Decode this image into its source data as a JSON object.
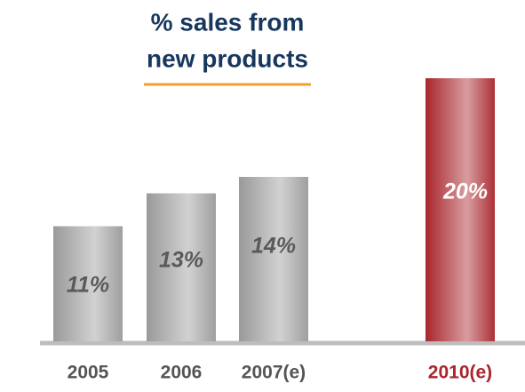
{
  "chart_data": {
    "type": "bar",
    "title": [
      "% sales from",
      "new products"
    ],
    "categories": [
      "2005",
      "2006",
      "2007(e)",
      "2010(e)"
    ],
    "values": [
      11,
      13,
      14,
      20
    ],
    "value_labels": [
      "11%",
      "13%",
      "14%",
      "20%"
    ],
    "colors": [
      "#9a9a9a",
      "#9a9a9a",
      "#9a9a9a",
      "#a8262c"
    ],
    "ylim": [
      4,
      20
    ]
  }
}
